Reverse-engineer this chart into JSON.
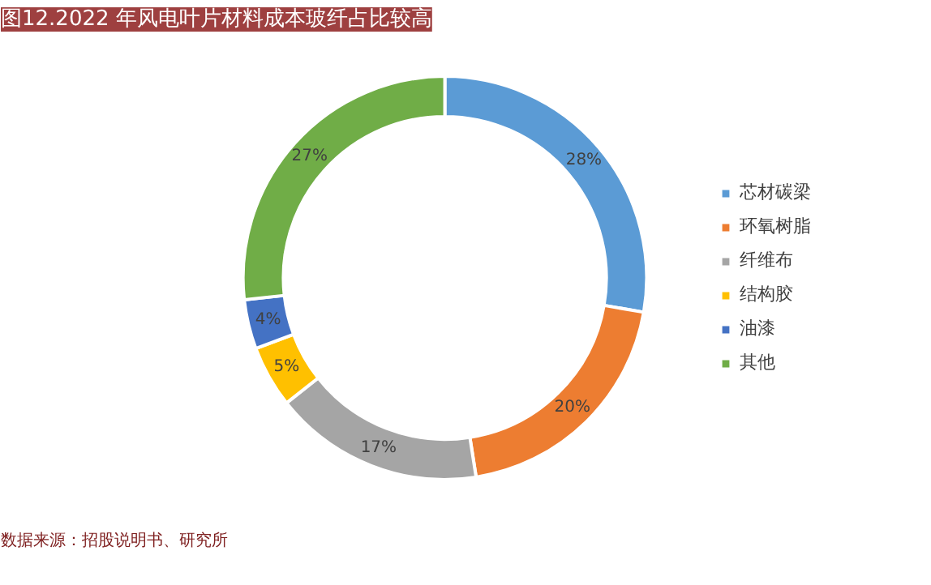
{
  "chart_data": {
    "type": "donut",
    "title": "图12.2022 年风电叶片材料成本玻纤占比较高",
    "categories": [
      "芯材碳梁",
      "环氧树脂",
      "纤维布",
      "结构胶",
      "油漆",
      "其他"
    ],
    "values": [
      28,
      20,
      17,
      5,
      4,
      27
    ],
    "colors": [
      "#5b9bd5",
      "#ed7d31",
      "#a5a5a5",
      "#ffc000",
      "#4472c4",
      "#70ad47"
    ],
    "value_labels": [
      "28%",
      "20%",
      "17%",
      "5%",
      "4%",
      "27%"
    ],
    "legend": "right",
    "annotations": [
      "数据来源：招股说明书、研究所"
    ]
  }
}
